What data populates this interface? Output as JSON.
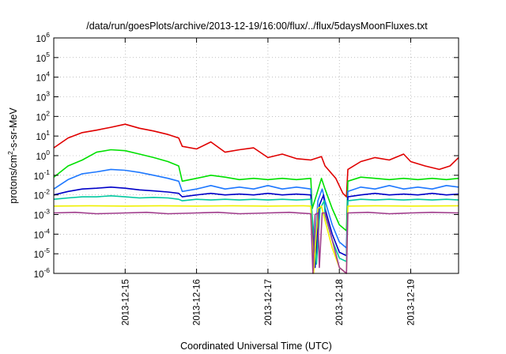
{
  "chart_data": {
    "type": "line",
    "title": "/data/run/goesPlots/archive/2013-12-19/16:00/flux/../flux/5daysMoonFluxes.txt",
    "xlabel": "Coordinated Universal Time (UTC)",
    "ylabel_parts": {
      "main": "protons/cm",
      "sup": "2",
      "tail": "-s-sr-MeV"
    },
    "y_scale": "log",
    "ylim": [
      1e-06,
      1000000.0
    ],
    "y_ticks": [
      {
        "value": 1e-06,
        "base": "10",
        "exp": "-6"
      },
      {
        "value": 1e-05,
        "base": "10",
        "exp": "-5"
      },
      {
        "value": 0.0001,
        "base": "10",
        "exp": "-4"
      },
      {
        "value": 0.001,
        "base": "10",
        "exp": "-3"
      },
      {
        "value": 0.01,
        "base": "10",
        "exp": "-2"
      },
      {
        "value": 0.1,
        "base": "10",
        "exp": "-1"
      },
      {
        "value": 1,
        "base": "10",
        "exp": "0"
      },
      {
        "value": 10,
        "base": "10",
        "exp": "1"
      },
      {
        "value": 100,
        "base": "10",
        "exp": "2"
      },
      {
        "value": 1000,
        "base": "10",
        "exp": "3"
      },
      {
        "value": 10000,
        "base": "10",
        "exp": "4"
      },
      {
        "value": 100000,
        "base": "10",
        "exp": "5"
      },
      {
        "value": 1000000,
        "base": "10",
        "exp": "6"
      }
    ],
    "xlim": [
      14.0,
      19.67
    ],
    "x_ticks": [
      {
        "value": 15,
        "label": "2013-12-15"
      },
      {
        "value": 16,
        "label": "2013-12-16"
      },
      {
        "value": 17,
        "label": "2013-12-17"
      },
      {
        "value": 18,
        "label": "2013-12-18"
      },
      {
        "value": 19,
        "label": "2013-12-19"
      }
    ],
    "grid": true,
    "x_unit_note": "x values are day-of-month, December 2013 (UTC)",
    "series": [
      {
        "color": "#e00000",
        "points": [
          [
            14.0,
            2.5
          ],
          [
            14.2,
            8
          ],
          [
            14.4,
            15
          ],
          [
            14.6,
            20
          ],
          [
            14.8,
            28
          ],
          [
            15.0,
            40
          ],
          [
            15.2,
            25
          ],
          [
            15.4,
            18
          ],
          [
            15.6,
            12
          ],
          [
            15.75,
            8
          ],
          [
            15.8,
            3
          ],
          [
            16.0,
            2.2
          ],
          [
            16.2,
            5
          ],
          [
            16.4,
            1.5
          ],
          [
            16.6,
            2
          ],
          [
            16.8,
            2.5
          ],
          [
            17.0,
            0.8
          ],
          [
            17.2,
            1.2
          ],
          [
            17.4,
            0.7
          ],
          [
            17.6,
            0.6
          ],
          [
            17.75,
            0.9
          ],
          [
            17.8,
            0.3
          ],
          [
            17.95,
            0.07
          ],
          [
            18.05,
            0.012
          ],
          [
            18.1,
            0.008
          ],
          [
            18.12,
            0.2
          ],
          [
            18.3,
            0.5
          ],
          [
            18.5,
            0.8
          ],
          [
            18.7,
            0.6
          ],
          [
            18.9,
            1.2
          ],
          [
            19.0,
            0.5
          ],
          [
            19.2,
            0.3
          ],
          [
            19.4,
            0.2
          ],
          [
            19.55,
            0.3
          ],
          [
            19.67,
            0.8
          ]
        ]
      },
      {
        "color": "#00e000",
        "points": [
          [
            14.0,
            0.08
          ],
          [
            14.2,
            0.3
          ],
          [
            14.4,
            0.6
          ],
          [
            14.6,
            1.5
          ],
          [
            14.8,
            2
          ],
          [
            15.0,
            1.8
          ],
          [
            15.2,
            1.2
          ],
          [
            15.4,
            0.8
          ],
          [
            15.6,
            0.5
          ],
          [
            15.75,
            0.3
          ],
          [
            15.8,
            0.05
          ],
          [
            16.0,
            0.07
          ],
          [
            16.2,
            0.1
          ],
          [
            16.4,
            0.08
          ],
          [
            16.6,
            0.06
          ],
          [
            16.8,
            0.07
          ],
          [
            17.0,
            0.06
          ],
          [
            17.2,
            0.07
          ],
          [
            17.4,
            0.06
          ],
          [
            17.6,
            0.07
          ],
          [
            17.62,
            0.002
          ],
          [
            17.68,
            0.01
          ],
          [
            17.75,
            0.07
          ],
          [
            17.8,
            0.02
          ],
          [
            17.9,
            0.002
          ],
          [
            18.0,
            0.0003
          ],
          [
            18.1,
            0.00015
          ],
          [
            18.12,
            0.05
          ],
          [
            18.3,
            0.08
          ],
          [
            18.5,
            0.07
          ],
          [
            18.7,
            0.06
          ],
          [
            18.9,
            0.07
          ],
          [
            19.1,
            0.06
          ],
          [
            19.3,
            0.07
          ],
          [
            19.5,
            0.06
          ],
          [
            19.67,
            0.07
          ]
        ]
      },
      {
        "color": "#1e78ff",
        "points": [
          [
            14.0,
            0.02
          ],
          [
            14.2,
            0.06
          ],
          [
            14.4,
            0.12
          ],
          [
            14.6,
            0.15
          ],
          [
            14.8,
            0.2
          ],
          [
            15.0,
            0.18
          ],
          [
            15.2,
            0.14
          ],
          [
            15.4,
            0.1
          ],
          [
            15.6,
            0.07
          ],
          [
            15.75,
            0.05
          ],
          [
            15.8,
            0.015
          ],
          [
            16.0,
            0.02
          ],
          [
            16.2,
            0.03
          ],
          [
            16.4,
            0.02
          ],
          [
            16.6,
            0.025
          ],
          [
            16.8,
            0.02
          ],
          [
            17.0,
            0.03
          ],
          [
            17.2,
            0.02
          ],
          [
            17.4,
            0.025
          ],
          [
            17.6,
            0.02
          ],
          [
            17.64,
            5e-06
          ],
          [
            17.7,
            0.005
          ],
          [
            17.76,
            0.02
          ],
          [
            17.8,
            0.005
          ],
          [
            17.9,
            0.0003
          ],
          [
            18.0,
            4e-05
          ],
          [
            18.1,
            2e-05
          ],
          [
            18.12,
            0.015
          ],
          [
            18.3,
            0.025
          ],
          [
            18.5,
            0.02
          ],
          [
            18.7,
            0.03
          ],
          [
            18.9,
            0.02
          ],
          [
            19.1,
            0.025
          ],
          [
            19.3,
            0.02
          ],
          [
            19.5,
            0.03
          ],
          [
            19.67,
            0.025
          ]
        ]
      },
      {
        "color": "#0000c8",
        "points": [
          [
            14.0,
            0.01
          ],
          [
            14.2,
            0.015
          ],
          [
            14.4,
            0.02
          ],
          [
            14.6,
            0.022
          ],
          [
            14.8,
            0.025
          ],
          [
            15.0,
            0.022
          ],
          [
            15.2,
            0.018
          ],
          [
            15.4,
            0.016
          ],
          [
            15.6,
            0.014
          ],
          [
            15.75,
            0.012
          ],
          [
            15.8,
            0.008
          ],
          [
            16.0,
            0.01
          ],
          [
            16.2,
            0.012
          ],
          [
            16.4,
            0.01
          ],
          [
            16.6,
            0.011
          ],
          [
            16.8,
            0.01
          ],
          [
            17.0,
            0.012
          ],
          [
            17.2,
            0.01
          ],
          [
            17.4,
            0.011
          ],
          [
            17.6,
            0.01
          ],
          [
            17.66,
            2e-06
          ],
          [
            17.72,
            0.003
          ],
          [
            17.78,
            0.01
          ],
          [
            17.8,
            0.002
          ],
          [
            17.9,
            0.0001
          ],
          [
            18.0,
            1.2e-05
          ],
          [
            18.1,
            8e-06
          ],
          [
            18.12,
            0.008
          ],
          [
            18.3,
            0.01
          ],
          [
            18.5,
            0.012
          ],
          [
            18.7,
            0.01
          ],
          [
            18.9,
            0.011
          ],
          [
            19.1,
            0.01
          ],
          [
            19.3,
            0.012
          ],
          [
            19.5,
            0.01
          ],
          [
            19.67,
            0.011
          ]
        ]
      },
      {
        "color": "#00c8a0",
        "points": [
          [
            14.0,
            0.006
          ],
          [
            14.2,
            0.007
          ],
          [
            14.4,
            0.008
          ],
          [
            14.6,
            0.008
          ],
          [
            14.8,
            0.009
          ],
          [
            15.0,
            0.008
          ],
          [
            15.2,
            0.007
          ],
          [
            15.4,
            0.0075
          ],
          [
            15.6,
            0.007
          ],
          [
            15.75,
            0.006
          ],
          [
            15.8,
            0.005
          ],
          [
            16.0,
            0.006
          ],
          [
            16.2,
            0.0055
          ],
          [
            16.4,
            0.006
          ],
          [
            16.6,
            0.0055
          ],
          [
            16.8,
            0.006
          ],
          [
            17.0,
            0.0055
          ],
          [
            17.2,
            0.006
          ],
          [
            17.4,
            0.0055
          ],
          [
            17.6,
            0.006
          ],
          [
            17.68,
            3e-06
          ],
          [
            17.73,
            0.002
          ],
          [
            17.79,
            0.005
          ],
          [
            17.8,
            0.001
          ],
          [
            17.9,
            5e-05
          ],
          [
            18.0,
            6e-06
          ],
          [
            18.1,
            4e-06
          ],
          [
            18.12,
            0.005
          ],
          [
            18.3,
            0.006
          ],
          [
            18.5,
            0.0055
          ],
          [
            18.7,
            0.006
          ],
          [
            18.9,
            0.0055
          ],
          [
            19.1,
            0.006
          ],
          [
            19.3,
            0.0055
          ],
          [
            19.5,
            0.006
          ],
          [
            19.67,
            0.0055
          ]
        ]
      },
      {
        "color": "#f0f000",
        "points": [
          [
            14.0,
            0.0027
          ],
          [
            14.5,
            0.0028
          ],
          [
            15.0,
            0.0027
          ],
          [
            15.5,
            0.0028
          ],
          [
            16.0,
            0.0027
          ],
          [
            16.5,
            0.0028
          ],
          [
            17.0,
            0.0027
          ],
          [
            17.5,
            0.0028
          ],
          [
            17.6,
            0.0027
          ],
          [
            17.64,
            1e-06
          ],
          [
            17.7,
            0.002
          ],
          [
            17.75,
            0.0027
          ],
          [
            17.8,
            0.0005
          ],
          [
            17.9,
            2e-05
          ],
          [
            18.0,
            2e-06
          ],
          [
            18.1,
            1e-06
          ],
          [
            18.12,
            0.0027
          ],
          [
            18.5,
            0.0028
          ],
          [
            19.0,
            0.0027
          ],
          [
            19.67,
            0.0028
          ]
        ]
      },
      {
        "color": "#a03c8c",
        "points": [
          [
            14.0,
            0.0012
          ],
          [
            14.3,
            0.0013
          ],
          [
            14.6,
            0.0011
          ],
          [
            15.0,
            0.0012
          ],
          [
            15.3,
            0.0013
          ],
          [
            15.6,
            0.0011
          ],
          [
            16.0,
            0.0012
          ],
          [
            16.3,
            0.0013
          ],
          [
            16.6,
            0.0011
          ],
          [
            17.0,
            0.0012
          ],
          [
            17.3,
            0.0013
          ],
          [
            17.6,
            0.0011
          ],
          [
            17.63,
            1e-06
          ],
          [
            17.66,
            0.001
          ],
          [
            17.7,
            0.0012
          ],
          [
            17.72,
            2e-06
          ],
          [
            17.76,
            0.0012
          ],
          [
            17.8,
            0.0012
          ],
          [
            17.9,
            5e-05
          ],
          [
            18.0,
            2e-06
          ],
          [
            18.1,
            1e-06
          ],
          [
            18.12,
            0.0012
          ],
          [
            18.4,
            0.0013
          ],
          [
            18.7,
            0.0011
          ],
          [
            19.0,
            0.0012
          ],
          [
            19.3,
            0.0013
          ],
          [
            19.67,
            0.0012
          ]
        ]
      }
    ]
  }
}
